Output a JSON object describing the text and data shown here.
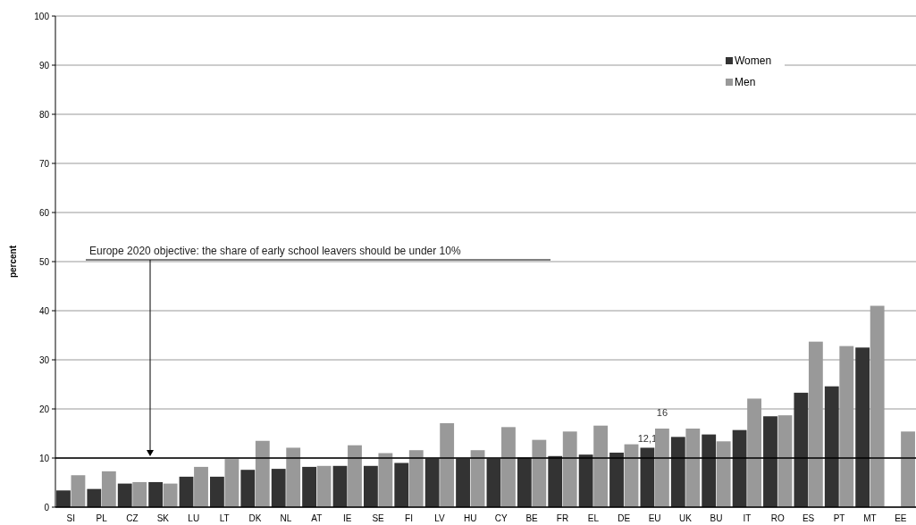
{
  "chart_data": {
    "type": "bar",
    "ylabel": "percent",
    "categories": [
      "SI",
      "PL",
      "CZ",
      "SK",
      "LU",
      "LT",
      "DK",
      "NL",
      "AT",
      "IE",
      "SE",
      "FI",
      "LV",
      "HU",
      "CY",
      "BE",
      "FR",
      "EL",
      "DE",
      "EU",
      "UK",
      "BU",
      "IT",
      "RO",
      "ES",
      "PT",
      "MT",
      "EE"
    ],
    "series": [
      {
        "name": "Women",
        "color": "#333333",
        "values": [
          3.4,
          3.7,
          4.8,
          5.1,
          6.2,
          6.2,
          7.6,
          7.8,
          8.2,
          8.4,
          8.4,
          9.0,
          9.9,
          9.9,
          9.9,
          10.1,
          10.4,
          10.7,
          11.1,
          12.1,
          14.3,
          14.8,
          15.7,
          18.5,
          23.3,
          24.6,
          32.5,
          null
        ],
        "value_labels": [
          null,
          null,
          null,
          null,
          null,
          null,
          null,
          null,
          null,
          null,
          null,
          null,
          null,
          null,
          null,
          null,
          null,
          null,
          null,
          "12,1",
          null,
          null,
          null,
          null,
          null,
          null,
          null,
          null
        ]
      },
      {
        "name": "Men",
        "color": "#999999",
        "values": [
          6.5,
          7.3,
          5.1,
          4.8,
          8.2,
          9.8,
          13.5,
          12.1,
          8.4,
          12.6,
          11.0,
          11.6,
          17.1,
          11.6,
          16.3,
          13.7,
          15.4,
          16.6,
          12.8,
          16,
          16.0,
          13.4,
          22.1,
          18.7,
          33.7,
          32.8,
          41.0,
          15.4
        ],
        "value_labels": [
          null,
          null,
          null,
          null,
          null,
          null,
          null,
          null,
          null,
          null,
          null,
          null,
          null,
          null,
          null,
          null,
          null,
          null,
          null,
          "16",
          null,
          null,
          null,
          null,
          null,
          null,
          null,
          null
        ]
      }
    ],
    "ylim": [
      0,
      100
    ],
    "yticks": [
      0,
      10,
      20,
      30,
      40,
      50,
      60,
      70,
      80,
      90,
      100
    ],
    "grid": "y",
    "legend": "top right",
    "ref_lines": [
      {
        "axis": "y",
        "value": 10,
        "color": "#000000"
      }
    ],
    "annotations": [
      "Europe 2020 objective: the share of early school leavers should be under 10%"
    ]
  }
}
